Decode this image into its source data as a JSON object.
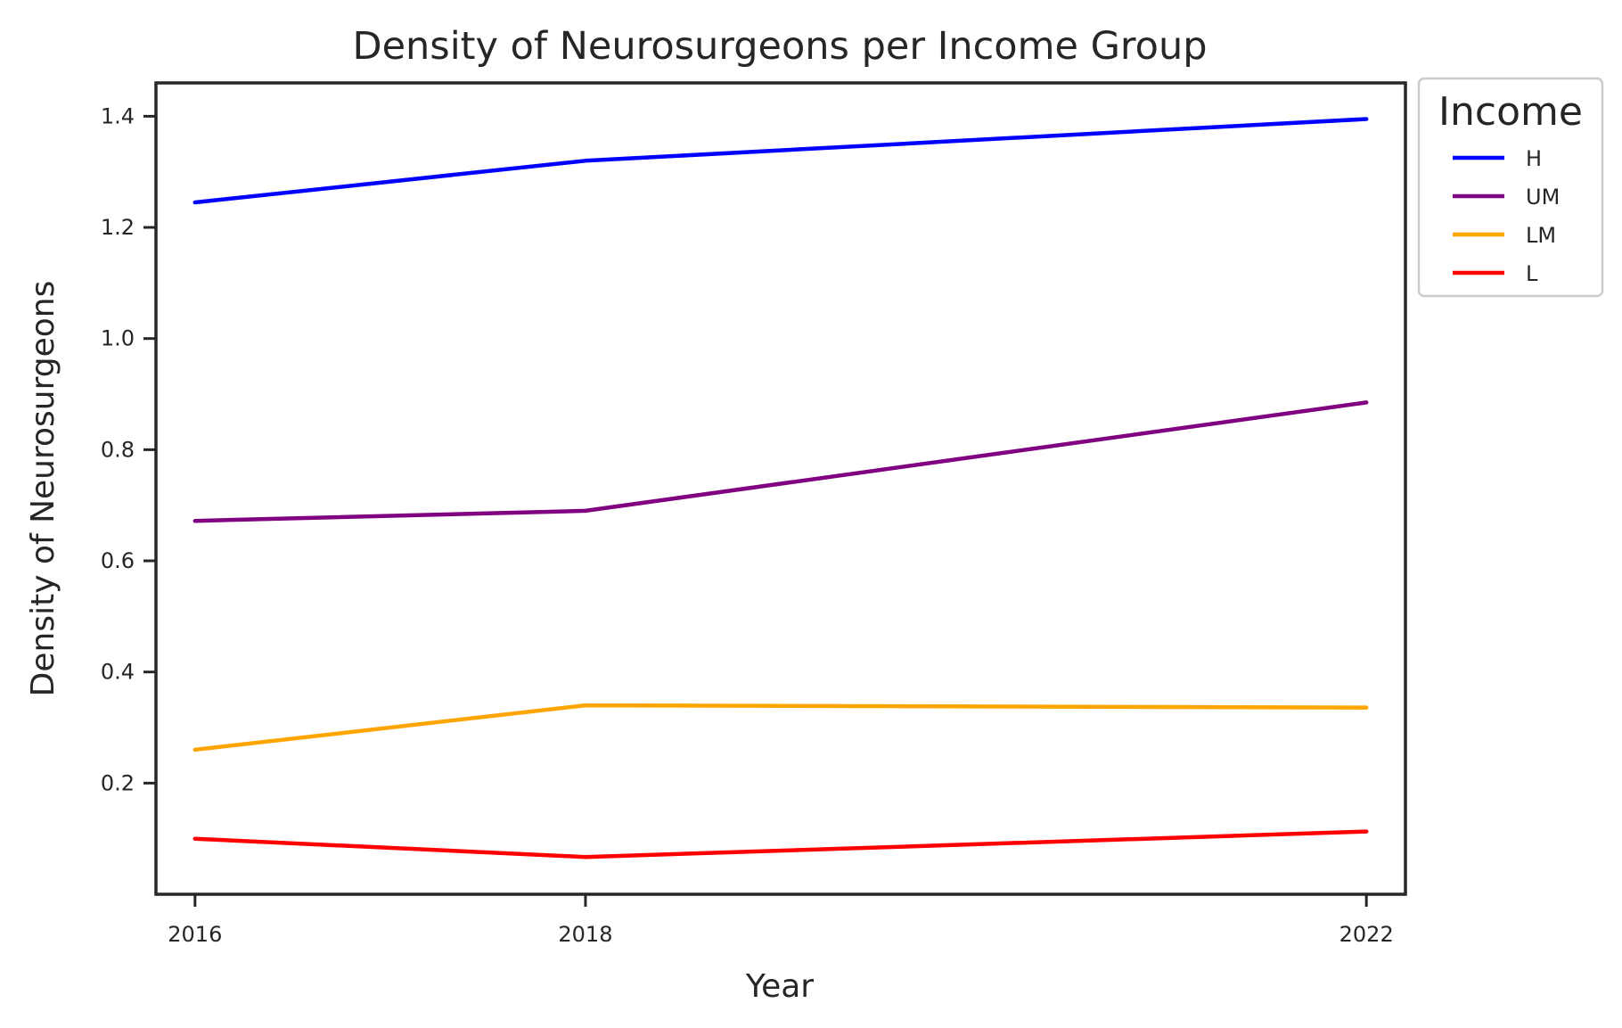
{
  "chart_data": {
    "type": "line",
    "title": "Density of Neurosurgeons per Income Group",
    "xlabel": "Year",
    "ylabel": "Density of Neurosurgeons",
    "x": [
      2016,
      2018,
      2022
    ],
    "x_ticks": [
      "2016",
      "2018",
      "2022"
    ],
    "xlim": [
      2015.8,
      2022.2
    ],
    "ylim": [
      0.0,
      1.46
    ],
    "y_ticks": [
      0.2,
      0.4,
      0.6,
      0.8,
      1.0,
      1.2,
      1.4
    ],
    "y_tick_labels": [
      "0.2",
      "0.4",
      "0.6",
      "0.8",
      "1.0",
      "1.2",
      "1.4"
    ],
    "grid": false,
    "legend": {
      "title": "Income",
      "placement": "outside-top-right"
    },
    "series": [
      {
        "name": "H",
        "color": "#0000ff",
        "values": [
          1.245,
          1.32,
          1.395
        ]
      },
      {
        "name": "UM",
        "color": "#800080",
        "values": [
          0.672,
          0.69,
          0.885
        ]
      },
      {
        "name": "LM",
        "color": "#ffa500",
        "values": [
          0.26,
          0.34,
          0.336
        ]
      },
      {
        "name": "L",
        "color": "#ff0000",
        "values": [
          0.1,
          0.067,
          0.113
        ]
      }
    ]
  }
}
